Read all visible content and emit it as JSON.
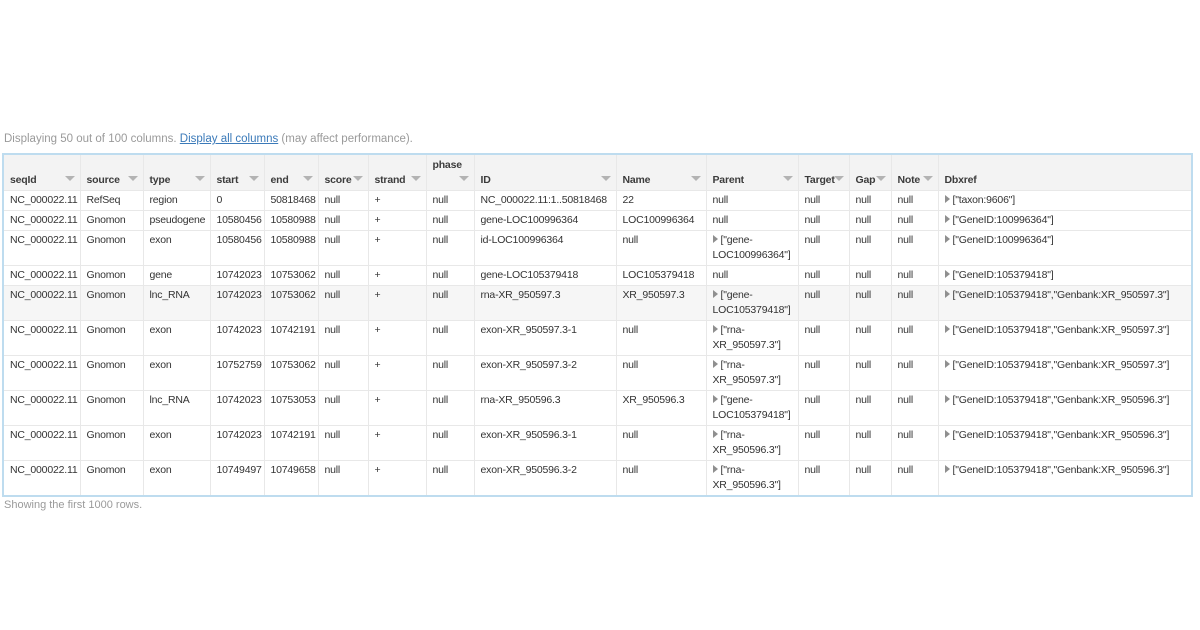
{
  "colors": {
    "link_blue": "#3b7ab9",
    "table_border_blue": "#bedcef",
    "header_bg": "#f3f3f3",
    "highlight_row_bg": "#f6f6f6"
  },
  "top_bar": {
    "prefix": "Displaying 50 out of 100 columns. ",
    "link": "Display all columns",
    "suffix": " (may affect performance)."
  },
  "table": {
    "columns": [
      {
        "label": "seqId",
        "sortable": true,
        "label_top": false
      },
      {
        "label": "source",
        "sortable": true,
        "label_top": false
      },
      {
        "label": "type",
        "sortable": true,
        "label_top": false
      },
      {
        "label": "start",
        "sortable": true,
        "label_top": false
      },
      {
        "label": "end",
        "sortable": true,
        "label_top": false
      },
      {
        "label": "score",
        "sortable": true,
        "label_top": false
      },
      {
        "label": "strand",
        "sortable": true,
        "label_top": false
      },
      {
        "label": "phase",
        "sortable": true,
        "label_top": true
      },
      {
        "label": "ID",
        "sortable": true,
        "label_top": false
      },
      {
        "label": "Name",
        "sortable": true,
        "label_top": false
      },
      {
        "label": "Parent",
        "sortable": true,
        "label_top": false
      },
      {
        "label": "Target",
        "sortable": true,
        "label_top": false
      },
      {
        "label": "Gap",
        "sortable": true,
        "label_top": false
      },
      {
        "label": "Note",
        "sortable": true,
        "label_top": false
      },
      {
        "label": "Dbxref",
        "sortable": false,
        "label_top": false
      }
    ],
    "rows": [
      {
        "highlight": false,
        "cells": [
          "NC_000022.11",
          "RefSeq",
          "region",
          "0",
          "50818468",
          "null",
          "+",
          "null",
          "NC_000022.11:1..50818468",
          "22",
          "null",
          "null",
          "null",
          "null",
          {
            "expander": true,
            "text": "[\"taxon:9606\"]"
          }
        ]
      },
      {
        "highlight": false,
        "cells": [
          "NC_000022.11",
          "Gnomon",
          "pseudogene",
          "10580456",
          "10580988",
          "null",
          "+",
          "null",
          "gene-LOC100996364",
          "LOC100996364",
          "null",
          "null",
          "null",
          "null",
          {
            "expander": true,
            "text": "[\"GeneID:100996364\"]"
          }
        ]
      },
      {
        "highlight": false,
        "cells": [
          "NC_000022.11",
          "Gnomon",
          "exon",
          "10580456",
          "10580988",
          "null",
          "+",
          "null",
          "id-LOC100996364",
          "null",
          {
            "expander": true,
            "text": "[\"gene-LOC100996364\"]"
          },
          "null",
          "null",
          "null",
          {
            "expander": true,
            "text": "[\"GeneID:100996364\"]"
          }
        ]
      },
      {
        "highlight": false,
        "cells": [
          "NC_000022.11",
          "Gnomon",
          "gene",
          "10742023",
          "10753062",
          "null",
          "+",
          "null",
          "gene-LOC105379418",
          "LOC105379418",
          "null",
          "null",
          "null",
          "null",
          {
            "expander": true,
            "text": "[\"GeneID:105379418\"]"
          }
        ]
      },
      {
        "highlight": true,
        "cells": [
          "NC_000022.11",
          "Gnomon",
          "lnc_RNA",
          "10742023",
          "10753062",
          "null",
          "+",
          "null",
          "rna-XR_950597.3",
          "XR_950597.3",
          {
            "expander": true,
            "text": "[\"gene-LOC105379418\"]"
          },
          "null",
          "null",
          "null",
          {
            "expander": true,
            "text": "[\"GeneID:105379418\",\"Genbank:XR_950597.3\"]"
          }
        ]
      },
      {
        "highlight": false,
        "cells": [
          "NC_000022.11",
          "Gnomon",
          "exon",
          "10742023",
          "10742191",
          "null",
          "+",
          "null",
          "exon-XR_950597.3-1",
          "null",
          {
            "expander": true,
            "text": "[\"rna-XR_950597.3\"]"
          },
          "null",
          "null",
          "null",
          {
            "expander": true,
            "text": "[\"GeneID:105379418\",\"Genbank:XR_950597.3\"]"
          }
        ]
      },
      {
        "highlight": false,
        "cells": [
          "NC_000022.11",
          "Gnomon",
          "exon",
          "10752759",
          "10753062",
          "null",
          "+",
          "null",
          "exon-XR_950597.3-2",
          "null",
          {
            "expander": true,
            "text": "[\"rna-XR_950597.3\"]"
          },
          "null",
          "null",
          "null",
          {
            "expander": true,
            "text": "[\"GeneID:105379418\",\"Genbank:XR_950597.3\"]"
          }
        ]
      },
      {
        "highlight": false,
        "cells": [
          "NC_000022.11",
          "Gnomon",
          "lnc_RNA",
          "10742023",
          "10753053",
          "null",
          "+",
          "null",
          "rna-XR_950596.3",
          "XR_950596.3",
          {
            "expander": true,
            "text": "[\"gene-LOC105379418\"]"
          },
          "null",
          "null",
          "null",
          {
            "expander": true,
            "text": "[\"GeneID:105379418\",\"Genbank:XR_950596.3\"]"
          }
        ]
      },
      {
        "highlight": false,
        "cells": [
          "NC_000022.11",
          "Gnomon",
          "exon",
          "10742023",
          "10742191",
          "null",
          "+",
          "null",
          "exon-XR_950596.3-1",
          "null",
          {
            "expander": true,
            "text": "[\"rna-XR_950596.3\"]"
          },
          "null",
          "null",
          "null",
          {
            "expander": true,
            "text": "[\"GeneID:105379418\",\"Genbank:XR_950596.3\"]"
          }
        ]
      },
      {
        "highlight": false,
        "cells": [
          "NC_000022.11",
          "Gnomon",
          "exon",
          "10749497",
          "10749658",
          "null",
          "+",
          "null",
          "exon-XR_950596.3-2",
          "null",
          {
            "expander": true,
            "text": "[\"rna-XR_950596.3\"]"
          },
          "null",
          "null",
          "null",
          {
            "expander": true,
            "text": "[\"GeneID:105379418\",\"Genbank:XR_950596.3\"]"
          }
        ]
      }
    ]
  },
  "footer": {
    "text": "Showing the first 1000 rows."
  }
}
